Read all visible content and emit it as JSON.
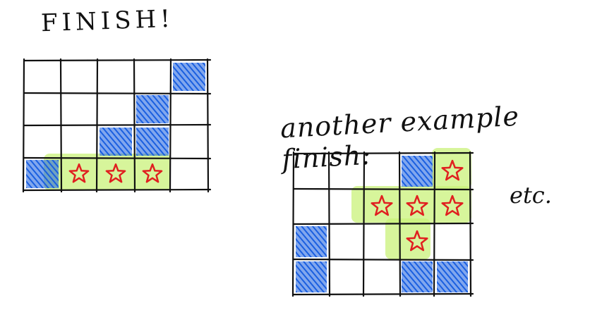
{
  "labels": {
    "title": "FINISH!",
    "subtitle": "another example finish:",
    "etc": "etc."
  },
  "colors": {
    "grid": "#111111",
    "blocked": "#1a5fe0",
    "highlight": "#c9f27a",
    "star": "#e02020"
  },
  "grids": [
    {
      "name": "grid-1",
      "rows": 4,
      "cols": 5,
      "blocked": [
        [
          0,
          4
        ],
        [
          1,
          3
        ],
        [
          2,
          2
        ],
        [
          2,
          3
        ],
        [
          3,
          0
        ]
      ],
      "stars": [
        [
          3,
          1
        ],
        [
          3,
          2
        ],
        [
          3,
          3
        ]
      ]
    },
    {
      "name": "grid-2",
      "rows": 4,
      "cols": 5,
      "blocked": [
        [
          0,
          3
        ],
        [
          2,
          0
        ],
        [
          3,
          0
        ],
        [
          3,
          3
        ],
        [
          3,
          4
        ]
      ],
      "stars": [
        [
          0,
          4
        ],
        [
          1,
          2
        ],
        [
          1,
          3
        ],
        [
          1,
          4
        ],
        [
          2,
          3
        ]
      ]
    }
  ]
}
